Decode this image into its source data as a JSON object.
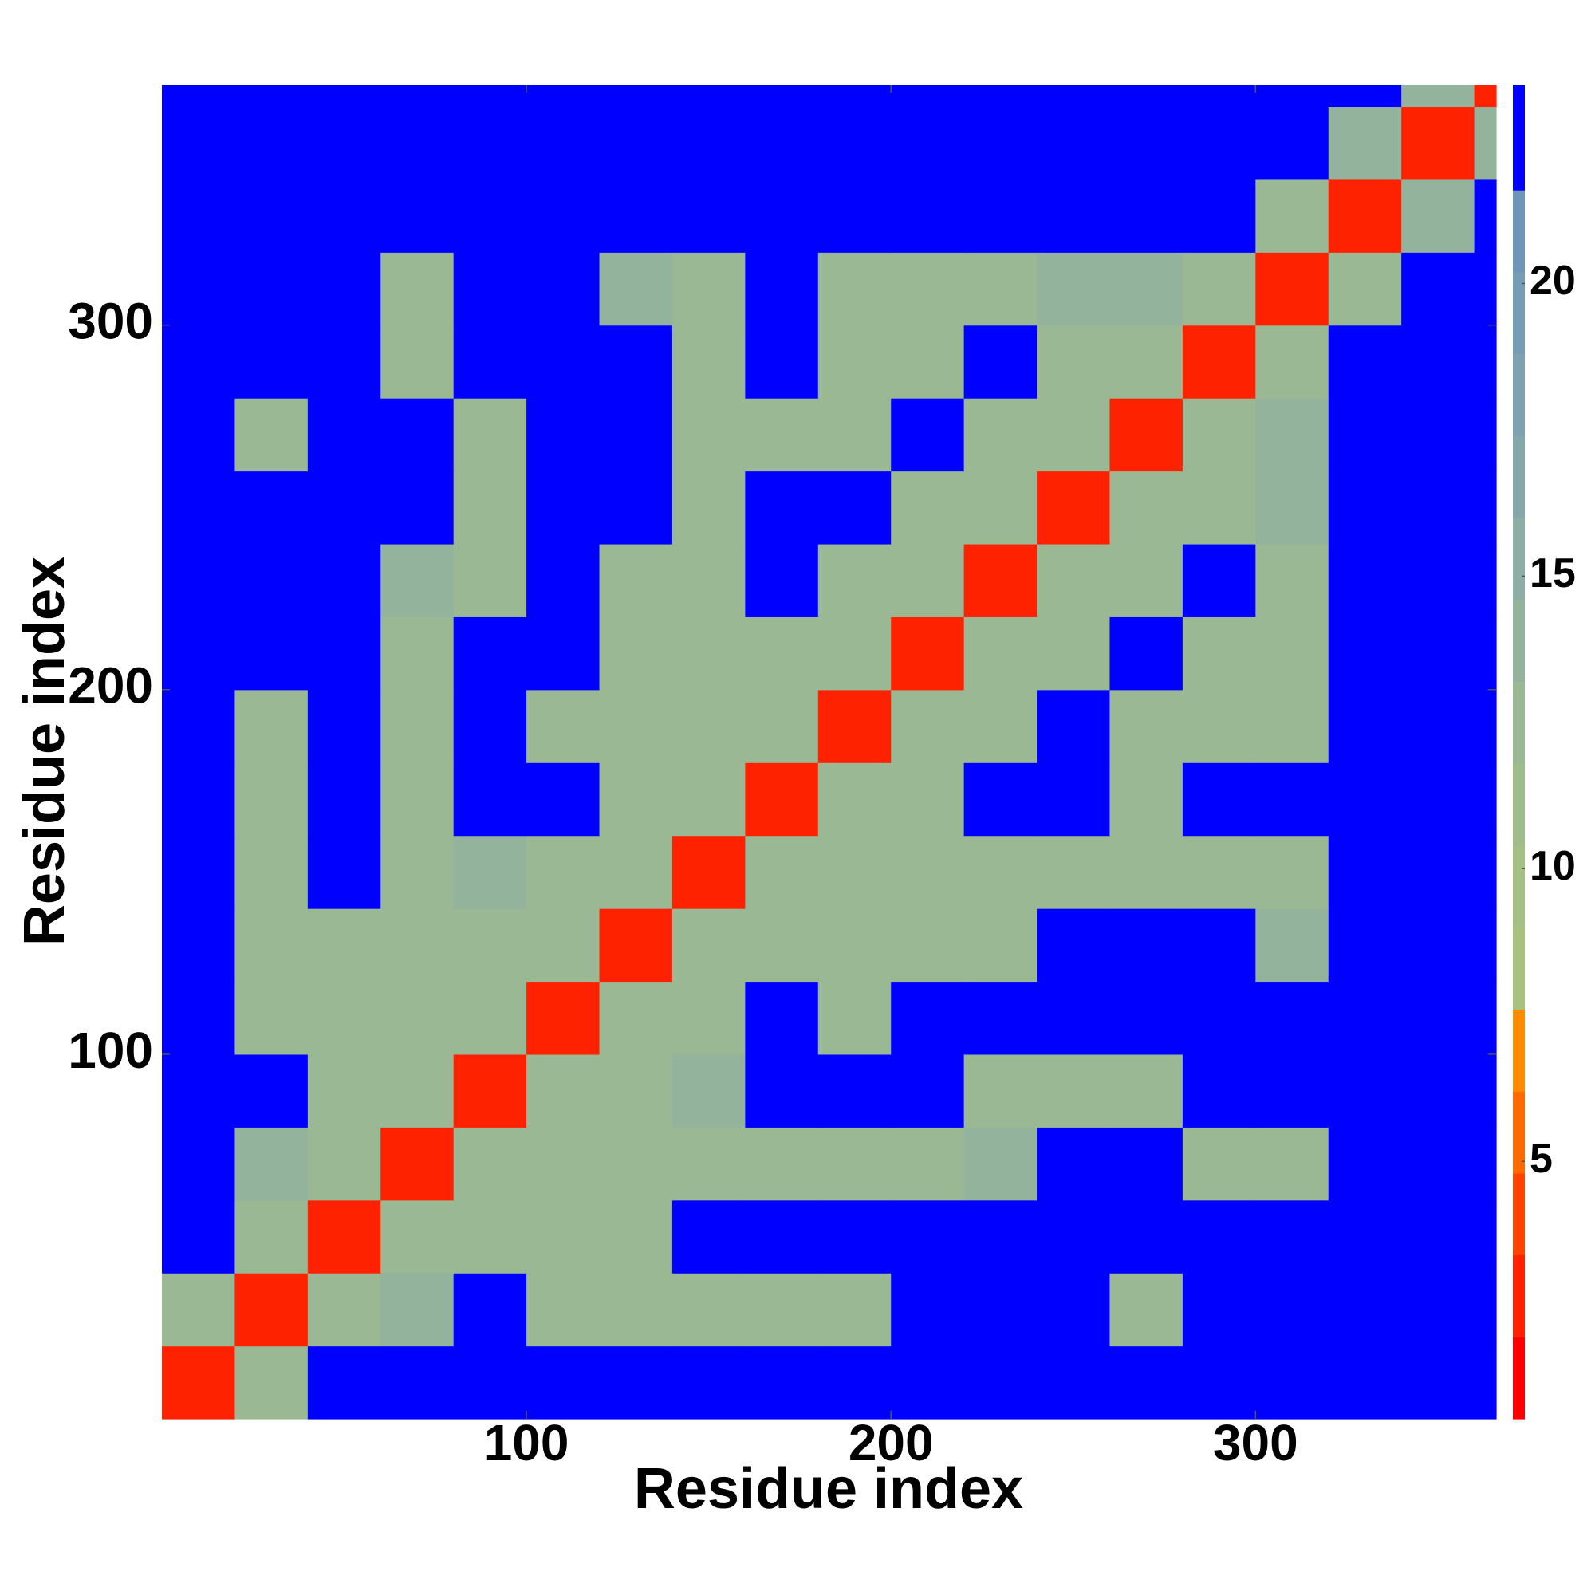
{
  "chart_data": {
    "type": "heatmap",
    "x_label": "Residue index",
    "y_label": "Residue index",
    "xlim": [
      0,
      366
    ],
    "ylim": [
      0,
      366
    ],
    "xticks": [
      100,
      200,
      300
    ],
    "yticks": [
      100,
      200,
      300
    ],
    "x_bins": [
      0,
      20,
      40,
      60,
      80,
      100,
      120,
      140,
      160,
      180,
      200,
      220,
      240,
      260,
      280,
      300,
      320,
      340,
      360,
      366
    ],
    "y_bins": [
      0,
      20,
      40,
      60,
      80,
      100,
      120,
      140,
      160,
      180,
      200,
      220,
      240,
      260,
      280,
      300,
      320,
      340,
      360,
      366
    ],
    "values": [
      [
        3,
        12,
        23,
        23,
        23,
        23,
        23,
        23,
        23,
        23,
        23,
        23,
        23,
        23,
        23,
        23,
        23,
        23,
        23
      ],
      [
        12,
        3,
        12,
        14,
        23,
        12,
        12,
        13,
        12,
        12,
        23,
        23,
        23,
        13,
        23,
        23,
        23,
        23,
        23
      ],
      [
        23,
        12,
        3,
        12,
        12,
        12,
        12,
        23,
        23,
        23,
        23,
        23,
        23,
        23,
        23,
        23,
        23,
        23,
        23
      ],
      [
        23,
        14,
        12,
        3,
        12,
        12,
        12,
        12,
        13,
        13,
        13,
        14,
        23,
        23,
        13,
        13,
        23,
        23,
        23
      ],
      [
        23,
        23,
        12,
        12,
        3,
        12,
        12,
        14,
        23,
        23,
        23,
        12,
        12,
        12,
        23,
        23,
        23,
        23,
        23
      ],
      [
        23,
        12,
        12,
        12,
        12,
        3,
        12,
        13,
        23,
        13,
        23,
        23,
        23,
        23,
        23,
        23,
        23,
        23,
        23
      ],
      [
        23,
        12,
        12,
        12,
        12,
        12,
        3,
        12,
        13,
        12,
        12,
        13,
        23,
        23,
        23,
        14,
        23,
        23,
        23
      ],
      [
        23,
        13,
        23,
        12,
        14,
        13,
        12,
        3,
        12,
        12,
        12,
        12,
        12,
        12,
        12,
        12,
        23,
        23,
        23
      ],
      [
        23,
        12,
        23,
        13,
        23,
        23,
        13,
        12,
        3,
        12,
        12,
        23,
        23,
        12,
        23,
        23,
        23,
        23,
        23
      ],
      [
        23,
        12,
        23,
        13,
        23,
        13,
        12,
        12,
        12,
        3,
        12,
        13,
        23,
        12,
        12,
        12,
        23,
        23,
        23
      ],
      [
        23,
        23,
        23,
        13,
        23,
        23,
        12,
        12,
        12,
        12,
        3,
        12,
        13,
        23,
        12,
        12,
        23,
        23,
        23
      ],
      [
        23,
        23,
        23,
        14,
        12,
        23,
        13,
        12,
        23,
        13,
        12,
        3,
        12,
        13,
        23,
        13,
        23,
        23,
        23
      ],
      [
        23,
        23,
        23,
        23,
        12,
        23,
        23,
        12,
        23,
        23,
        13,
        12,
        3,
        12,
        13,
        14,
        23,
        23,
        23
      ],
      [
        23,
        13,
        23,
        23,
        12,
        23,
        23,
        12,
        12,
        12,
        23,
        13,
        12,
        3,
        12,
        14,
        23,
        23,
        23
      ],
      [
        23,
        23,
        23,
        13,
        23,
        23,
        23,
        12,
        23,
        12,
        12,
        23,
        13,
        12,
        3,
        12,
        23,
        23,
        23
      ],
      [
        23,
        23,
        23,
        13,
        23,
        23,
        14,
        12,
        23,
        12,
        12,
        13,
        14,
        14,
        12,
        3,
        12,
        23,
        23
      ],
      [
        23,
        23,
        23,
        23,
        23,
        23,
        23,
        23,
        23,
        23,
        23,
        23,
        23,
        23,
        23,
        12,
        3,
        14,
        23
      ],
      [
        23,
        23,
        23,
        23,
        23,
        23,
        23,
        23,
        23,
        23,
        23,
        23,
        23,
        23,
        23,
        23,
        14,
        3,
        14
      ],
      [
        23,
        23,
        23,
        23,
        23,
        23,
        23,
        23,
        23,
        23,
        23,
        23,
        23,
        23,
        23,
        23,
        23,
        14,
        3
      ]
    ],
    "colorbar": {
      "lim": [
        0.6,
        23.4
      ],
      "ticks": [
        5,
        10,
        15,
        20
      ],
      "levels": [
        0.6,
        2.0,
        3.4,
        4.8,
        6.2,
        7.6,
        9.0,
        10.4,
        11.8,
        13.2,
        14.6,
        16.0,
        17.4,
        18.8,
        20.2,
        21.6,
        23.4
      ],
      "colors": [
        "#ff0000",
        "#ff2200",
        "#ff4400",
        "#ff6a00",
        "#ff8c00",
        "#a9c17f",
        "#a5bf85",
        "#a0bc8b",
        "#9ab894",
        "#93b39c",
        "#8caea4",
        "#85a8ab",
        "#7ea2b1",
        "#779cb6",
        "#6f95bb",
        "#0000ff"
      ]
    }
  }
}
